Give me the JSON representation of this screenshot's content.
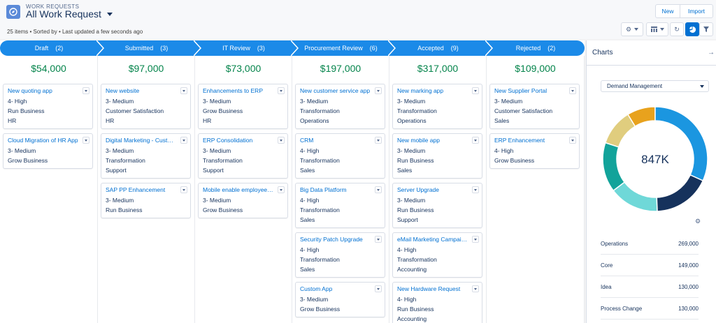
{
  "header": {
    "object_label": "WORK REQUESTS",
    "list_title": "All Work Request",
    "meta": "25 items • Sorted by • Last updated a few seconds ago",
    "new_label": "New",
    "import_label": "Import",
    "tools": [
      "gear-icon",
      "table-icon",
      "refresh-icon",
      "chart-icon",
      "filter-icon"
    ]
  },
  "stages": [
    {
      "label": "Draft",
      "count": "(2)",
      "total": "$54,000"
    },
    {
      "label": "Submitted",
      "count": "(3)",
      "total": "$97,000"
    },
    {
      "label": "IT Review",
      "count": "(3)",
      "total": "$73,000"
    },
    {
      "label": "Procurement Review",
      "count": "(6)",
      "total": "$197,000"
    },
    {
      "label": "Accepted",
      "count": "(9)",
      "total": "$317,000"
    },
    {
      "label": "Rejected",
      "count": "(2)",
      "total": "$109,000"
    }
  ],
  "columns": [
    [
      {
        "title": "New quoting app",
        "lines": [
          "4- High",
          "Run Business",
          "HR"
        ]
      },
      {
        "title": "Cloud Migration of HR App",
        "lines": [
          "3- Medium",
          "Grow Business"
        ]
      }
    ],
    [
      {
        "title": "New website",
        "lines": [
          "3- Medium",
          "Customer Satisfaction",
          "HR"
        ]
      },
      {
        "title": "Digital Marketing - Custom...",
        "lines": [
          "3- Medium",
          "Transformation",
          "Support"
        ]
      },
      {
        "title": "SAP PP Enhancement",
        "lines": [
          "3- Medium",
          "Run Business"
        ]
      }
    ],
    [
      {
        "title": "Enhancements to ERP",
        "lines": [
          "3- Medium",
          "Grow Business",
          "HR"
        ]
      },
      {
        "title": "ERP Consolidation",
        "lines": [
          "3- Medium",
          "Transformation",
          "Support"
        ]
      },
      {
        "title": "Mobile enable employee p...",
        "lines": [
          "3- Medium",
          "Grow Business"
        ]
      }
    ],
    [
      {
        "title": "New customer service app",
        "lines": [
          "3- Medium",
          "Transformation",
          "Operations"
        ]
      },
      {
        "title": "CRM",
        "lines": [
          "4- High",
          "Transformation",
          "Sales"
        ]
      },
      {
        "title": "Big Data Platform",
        "lines": [
          "4- High",
          "Transformation",
          "Sales"
        ]
      },
      {
        "title": "Security Patch Upgrade",
        "lines": [
          "4- High",
          "Transformation",
          "Sales"
        ]
      },
      {
        "title": "Custom App",
        "lines": [
          "3- Medium",
          "Grow Business"
        ]
      }
    ],
    [
      {
        "title": "New marking app",
        "lines": [
          "3- Medium",
          "Transformation",
          "Operations"
        ]
      },
      {
        "title": "New mobile app",
        "lines": [
          "3- Medium",
          "Run Business",
          "Sales"
        ]
      },
      {
        "title": "Server Upgrade",
        "lines": [
          "3- Medium",
          "Run Business",
          "Support"
        ]
      },
      {
        "title": "eMail Marketing Campaign...",
        "lines": [
          "4- High",
          "Transformation",
          "Accounting"
        ]
      },
      {
        "title": "New Hardware Request",
        "lines": [
          "4- High",
          "Run Business",
          "Accounting"
        ]
      }
    ],
    [
      {
        "title": "New Supplier Portal",
        "lines": [
          "3- Medium",
          "Customer Satisfaction",
          "Sales"
        ]
      },
      {
        "title": "ERP Enhancement",
        "lines": [
          "4- High",
          "Grow Business"
        ]
      }
    ]
  ],
  "charts_panel": {
    "title": "Charts",
    "selector": "Demand Management",
    "center_value": "847K",
    "segments": [
      {
        "value": 269,
        "color": "#1b96e0"
      },
      {
        "value": 149,
        "color": "#16325c"
      },
      {
        "value": 130,
        "color": "#6fd8d8"
      },
      {
        "value": 130,
        "color": "#12a39a"
      },
      {
        "value": 95,
        "color": "#e0cd7e"
      },
      {
        "value": 74,
        "color": "#e8a21d"
      }
    ],
    "legend": [
      {
        "label": "Operations",
        "value": "269,000"
      },
      {
        "label": "Core",
        "value": "149,000"
      },
      {
        "label": "Idea",
        "value": "130,000"
      },
      {
        "label": "Process Change",
        "value": "130,000"
      }
    ]
  },
  "colors": {
    "accent": "#0070d2",
    "stage": "#1b8ae8",
    "money": "#04844b"
  }
}
